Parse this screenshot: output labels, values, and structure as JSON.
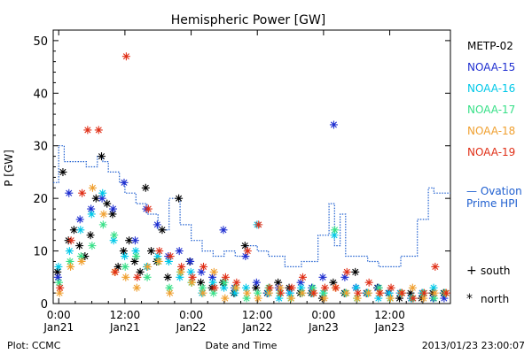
{
  "chart_data": {
    "type": "scatter",
    "title": "Hemispheric Power [GW]",
    "ylabel": "P [GW]",
    "xlabel": "Date and Time",
    "ylim": [
      0,
      52
    ],
    "y_ticks": [
      0,
      10,
      20,
      30,
      40,
      50
    ],
    "x_unit": "hours since 2013-01-21 00:00 UT",
    "xlim": [
      -1,
      71
    ],
    "x_ticks": [
      {
        "x": 0,
        "time": "0:00",
        "date": "Jan21"
      },
      {
        "x": 12,
        "time": "12:00",
        "date": "Jan21"
      },
      {
        "x": 24,
        "time": "0:00",
        "date": "Jan22"
      },
      {
        "x": 36,
        "time": "12:00",
        "date": "Jan22"
      },
      {
        "x": 48,
        "time": "0:00",
        "date": "Jan23"
      },
      {
        "x": 60,
        "time": "12:00",
        "date": "Jan23"
      }
    ],
    "legend": [
      {
        "name": "METP-02",
        "color": "#000000"
      },
      {
        "name": "NOAA-15",
        "color": "#1f2fd0"
      },
      {
        "name": "NOAA-16",
        "color": "#00c8e8"
      },
      {
        "name": "NOAA-17",
        "color": "#38e088"
      },
      {
        "name": "NOAA-18",
        "color": "#f0a030"
      },
      {
        "name": "NOAA-19",
        "color": "#e03018"
      }
    ],
    "ovation": {
      "label_line1": "— Ovation",
      "label_line2": "Prime HPI",
      "color": "#2060d0",
      "points": [
        [
          -1,
          23
        ],
        [
          0,
          23
        ],
        [
          0,
          30
        ],
        [
          1,
          30
        ],
        [
          1,
          27
        ],
        [
          5,
          27
        ],
        [
          5,
          26
        ],
        [
          7,
          26
        ],
        [
          7,
          28
        ],
        [
          8,
          28
        ],
        [
          8,
          27
        ],
        [
          9,
          27
        ],
        [
          9,
          25
        ],
        [
          11,
          25
        ],
        [
          11,
          23
        ],
        [
          12,
          23
        ],
        [
          12,
          21
        ],
        [
          14,
          21
        ],
        [
          14,
          19
        ],
        [
          16,
          19
        ],
        [
          16,
          17
        ],
        [
          18,
          17
        ],
        [
          18,
          14
        ],
        [
          20,
          14
        ],
        [
          20,
          20
        ],
        [
          22,
          20
        ],
        [
          22,
          15
        ],
        [
          24,
          15
        ],
        [
          24,
          12
        ],
        [
          26,
          12
        ],
        [
          26,
          10
        ],
        [
          28,
          10
        ],
        [
          28,
          9
        ],
        [
          30,
          9
        ],
        [
          30,
          10
        ],
        [
          32,
          10
        ],
        [
          32,
          9
        ],
        [
          34,
          9
        ],
        [
          34,
          11
        ],
        [
          36,
          11
        ],
        [
          36,
          10
        ],
        [
          38,
          10
        ],
        [
          38,
          9
        ],
        [
          41,
          9
        ],
        [
          41,
          7
        ],
        [
          44,
          7
        ],
        [
          44,
          8
        ],
        [
          47,
          8
        ],
        [
          47,
          13
        ],
        [
          49,
          13
        ],
        [
          49,
          19
        ],
        [
          50,
          19
        ],
        [
          50,
          11
        ],
        [
          51,
          11
        ],
        [
          51,
          17
        ],
        [
          52,
          17
        ],
        [
          52,
          9
        ],
        [
          56,
          9
        ],
        [
          56,
          8
        ],
        [
          58,
          8
        ],
        [
          58,
          7
        ],
        [
          62,
          7
        ],
        [
          62,
          9
        ],
        [
          65,
          9
        ],
        [
          65,
          16
        ],
        [
          67,
          16
        ],
        [
          67,
          22
        ],
        [
          68,
          22
        ],
        [
          68,
          21
        ],
        [
          71,
          21
        ]
      ]
    },
    "series": [
      {
        "name": "METP-02",
        "color": "#000000",
        "marker": "star",
        "points": [
          [
            0,
            6
          ],
          [
            1,
            25
          ],
          [
            2,
            12
          ],
          [
            3,
            14
          ],
          [
            4,
            11
          ],
          [
            5,
            9
          ],
          [
            6,
            13
          ],
          [
            7,
            20
          ],
          [
            8,
            28
          ],
          [
            9,
            19
          ],
          [
            10,
            17
          ],
          [
            11,
            7
          ],
          [
            12,
            10
          ],
          [
            13,
            12
          ],
          [
            14,
            8
          ],
          [
            15,
            6
          ],
          [
            16,
            22
          ],
          [
            17,
            10
          ],
          [
            18,
            8
          ],
          [
            19,
            14
          ],
          [
            20,
            5
          ],
          [
            22,
            20
          ],
          [
            24,
            8
          ],
          [
            26,
            4
          ],
          [
            28,
            3
          ],
          [
            30,
            4
          ],
          [
            32,
            2
          ],
          [
            34,
            11
          ],
          [
            36,
            3
          ],
          [
            38,
            2
          ],
          [
            40,
            4
          ],
          [
            42,
            3
          ],
          [
            44,
            2
          ],
          [
            46,
            2
          ],
          [
            48,
            1
          ],
          [
            50,
            4
          ],
          [
            52,
            2
          ],
          [
            54,
            6
          ],
          [
            56,
            2
          ],
          [
            58,
            3
          ],
          [
            60,
            2
          ],
          [
            62,
            1
          ],
          [
            64,
            2
          ],
          [
            66,
            1
          ],
          [
            68,
            2
          ],
          [
            70,
            2
          ]
        ]
      },
      {
        "name": "NOAA-15",
        "color": "#1f2fd0",
        "marker": "star",
        "points": [
          [
            0,
            5
          ],
          [
            2,
            21
          ],
          [
            4,
            16
          ],
          [
            6,
            18
          ],
          [
            8,
            20
          ],
          [
            10,
            18
          ],
          [
            12,
            23
          ],
          [
            14,
            12
          ],
          [
            16,
            18
          ],
          [
            18,
            15
          ],
          [
            20,
            9
          ],
          [
            22,
            10
          ],
          [
            24,
            8
          ],
          [
            26,
            6
          ],
          [
            28,
            5
          ],
          [
            30,
            14
          ],
          [
            32,
            3
          ],
          [
            34,
            9
          ],
          [
            36,
            4
          ],
          [
            38,
            2
          ],
          [
            40,
            3
          ],
          [
            42,
            2
          ],
          [
            44,
            4
          ],
          [
            46,
            3
          ],
          [
            48,
            5
          ],
          [
            50,
            34
          ],
          [
            52,
            5
          ],
          [
            54,
            3
          ],
          [
            56,
            2
          ],
          [
            58,
            3
          ],
          [
            60,
            2
          ],
          [
            62,
            2
          ],
          [
            64,
            1
          ],
          [
            66,
            2
          ],
          [
            68,
            1
          ],
          [
            70,
            1
          ]
        ]
      },
      {
        "name": "NOAA-16",
        "color": "#00c8e8",
        "marker": "star",
        "points": [
          [
            0,
            7
          ],
          [
            2,
            10
          ],
          [
            4,
            14
          ],
          [
            6,
            17
          ],
          [
            8,
            21
          ],
          [
            10,
            12
          ],
          [
            12,
            9
          ],
          [
            14,
            10
          ],
          [
            16,
            7
          ],
          [
            18,
            9
          ],
          [
            20,
            8
          ],
          [
            22,
            5
          ],
          [
            24,
            6
          ],
          [
            26,
            2
          ],
          [
            28,
            4
          ],
          [
            30,
            3
          ],
          [
            32,
            2
          ],
          [
            34,
            3
          ],
          [
            36,
            15
          ],
          [
            38,
            2
          ],
          [
            40,
            1
          ],
          [
            42,
            2
          ],
          [
            44,
            3
          ],
          [
            46,
            2
          ],
          [
            48,
            2
          ],
          [
            50,
            13
          ],
          [
            52,
            2
          ],
          [
            54,
            3
          ],
          [
            56,
            2
          ],
          [
            58,
            1
          ],
          [
            60,
            2
          ],
          [
            62,
            2
          ],
          [
            64,
            1
          ],
          [
            66,
            2
          ],
          [
            68,
            3
          ],
          [
            70,
            2
          ]
        ]
      },
      {
        "name": "NOAA-17",
        "color": "#38e088",
        "marker": "star",
        "points": [
          [
            0,
            4
          ],
          [
            2,
            8
          ],
          [
            4,
            9
          ],
          [
            6,
            11
          ],
          [
            8,
            15
          ],
          [
            10,
            13
          ],
          [
            12,
            7
          ],
          [
            14,
            9
          ],
          [
            16,
            5
          ],
          [
            18,
            8
          ],
          [
            20,
            3
          ],
          [
            22,
            6
          ],
          [
            24,
            4
          ],
          [
            26,
            3
          ],
          [
            28,
            2
          ],
          [
            30,
            4
          ],
          [
            32,
            3
          ],
          [
            34,
            1
          ],
          [
            36,
            2
          ],
          [
            38,
            3
          ],
          [
            40,
            2
          ],
          [
            42,
            1
          ],
          [
            44,
            2
          ],
          [
            46,
            3
          ],
          [
            48,
            2
          ],
          [
            50,
            14
          ],
          [
            52,
            2
          ],
          [
            54,
            1
          ],
          [
            56,
            2
          ],
          [
            58,
            3
          ],
          [
            60,
            1
          ],
          [
            62,
            2
          ],
          [
            64,
            1
          ],
          [
            66,
            2
          ],
          [
            68,
            1
          ],
          [
            70,
            2
          ]
        ]
      },
      {
        "name": "NOAA-18",
        "color": "#f0a030",
        "marker": "star",
        "points": [
          [
            0,
            2
          ],
          [
            2,
            7
          ],
          [
            4,
            8
          ],
          [
            6,
            22
          ],
          [
            8,
            17
          ],
          [
            10,
            6
          ],
          [
            12,
            5
          ],
          [
            14,
            3
          ],
          [
            16,
            7
          ],
          [
            18,
            8
          ],
          [
            20,
            2
          ],
          [
            22,
            6
          ],
          [
            24,
            4
          ],
          [
            26,
            2
          ],
          [
            28,
            6
          ],
          [
            30,
            1
          ],
          [
            32,
            3
          ],
          [
            34,
            2
          ],
          [
            36,
            1
          ],
          [
            38,
            2
          ],
          [
            40,
            3
          ],
          [
            42,
            1
          ],
          [
            44,
            2
          ],
          [
            46,
            2
          ],
          [
            48,
            1
          ],
          [
            50,
            3
          ],
          [
            52,
            2
          ],
          [
            54,
            1
          ],
          [
            56,
            2
          ],
          [
            58,
            2
          ],
          [
            60,
            1
          ],
          [
            62,
            2
          ],
          [
            64,
            3
          ],
          [
            66,
            1
          ],
          [
            68,
            2
          ],
          [
            70,
            2
          ]
        ]
      },
      {
        "name": "NOAA-19",
        "color": "#e03018",
        "marker": "star",
        "points": [
          [
            0,
            3
          ],
          [
            2,
            12
          ],
          [
            4,
            21
          ],
          [
            5,
            33
          ],
          [
            7,
            33
          ],
          [
            10,
            6
          ],
          [
            12,
            47
          ],
          [
            14,
            5
          ],
          [
            16,
            18
          ],
          [
            18,
            10
          ],
          [
            20,
            9
          ],
          [
            22,
            7
          ],
          [
            24,
            5
          ],
          [
            26,
            7
          ],
          [
            28,
            3
          ],
          [
            30,
            5
          ],
          [
            32,
            4
          ],
          [
            34,
            10
          ],
          [
            36,
            15
          ],
          [
            38,
            3
          ],
          [
            40,
            2
          ],
          [
            42,
            3
          ],
          [
            44,
            5
          ],
          [
            46,
            2
          ],
          [
            48,
            3
          ],
          [
            50,
            3
          ],
          [
            52,
            6
          ],
          [
            54,
            2
          ],
          [
            56,
            4
          ],
          [
            58,
            2
          ],
          [
            60,
            3
          ],
          [
            62,
            2
          ],
          [
            64,
            1
          ],
          [
            66,
            2
          ],
          [
            68,
            7
          ],
          [
            70,
            2
          ]
        ]
      }
    ],
    "marker_legend": [
      {
        "symbol": "+",
        "label": "south"
      },
      {
        "symbol": "*",
        "label": "north"
      }
    ]
  },
  "footer": {
    "left": "Plot: CCMC",
    "center": "Date and Time",
    "right": "2013/01/23 23:00:07"
  }
}
